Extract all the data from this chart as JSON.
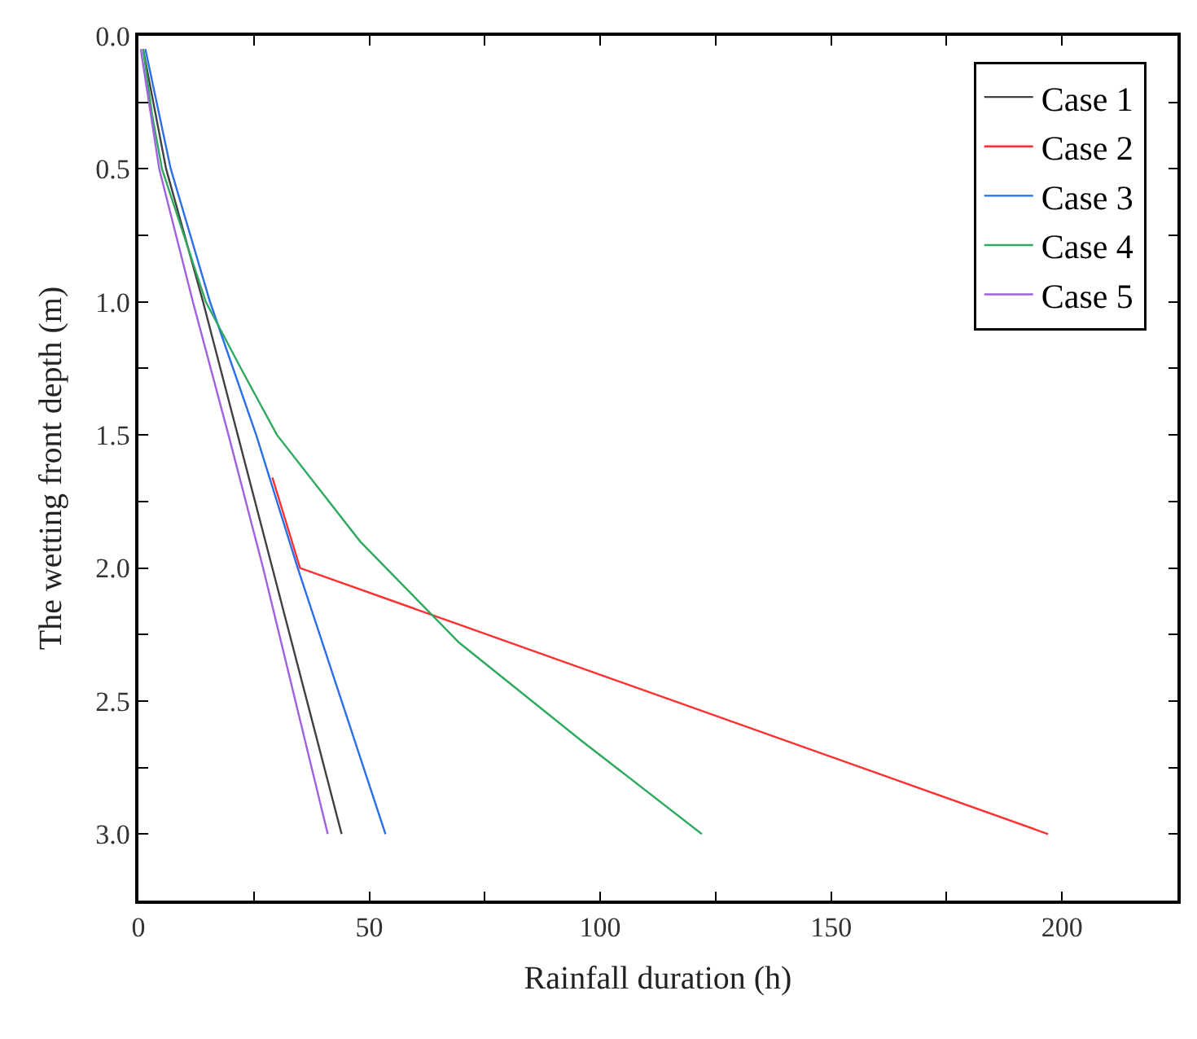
{
  "chart_data": {
    "type": "line",
    "xlabel": "Rainfall duration (h)",
    "ylabel": "The wetting front depth (m)",
    "xlim": [
      0,
      225
    ],
    "ylim": [
      3.25,
      0
    ],
    "xticks": [
      0,
      {
        "value": 25,
        "label": null
      },
      50,
      {
        "value": 75,
        "label": null
      },
      100,
      {
        "value": 125,
        "label": null
      },
      150,
      {
        "value": 175,
        "label": null
      },
      200
    ],
    "yticks": [
      "0.0",
      {
        "value": 0.25,
        "label": null
      },
      0.5,
      {
        "value": 0.75,
        "label": null
      },
      {
        "value": 1,
        "label": "1.0"
      },
      {
        "value": 1.25,
        "label": null
      },
      1.5,
      {
        "value": 1.75,
        "label": null
      },
      {
        "value": 2,
        "label": "2.0"
      },
      {
        "value": 2.25,
        "label": null
      },
      2.5,
      {
        "value": 2.75,
        "label": null
      },
      {
        "value": 3,
        "label": "3.0"
      }
    ],
    "grid": false,
    "legend": "top right",
    "marker": "none",
    "line_style": "solid",
    "series": [
      {
        "name": "Case 1",
        "color": "#404040",
        "x": [
          1,
          6,
          14,
          21.5,
          29,
          36.5,
          44
        ],
        "values": [
          0.05,
          0.5,
          1.0,
          1.5,
          2.0,
          2.5,
          3.0
        ]
      },
      {
        "name": "Case 2",
        "color": "#ff3030",
        "x": [
          29,
          35,
          116,
          197
        ],
        "values": [
          1.66,
          2.0,
          2.5,
          3.0
        ]
      },
      {
        "name": "Case 3",
        "color": "#2a6ee8",
        "x": [
          1.5,
          7,
          15.5,
          25.5,
          34.5,
          44,
          53.5
        ],
        "values": [
          0.05,
          0.5,
          1.0,
          1.5,
          2.0,
          2.5,
          3.0
        ]
      },
      {
        "name": "Case 4",
        "color": "#2eaa60",
        "x": [
          1,
          3,
          5.1,
          14.6,
          22.2,
          30,
          48,
          69.4,
          96,
          122
        ],
        "values": [
          0.05,
          0.3,
          0.5,
          1.0,
          1.25,
          1.5,
          1.9,
          2.28,
          2.65,
          3.0
        ]
      },
      {
        "name": "Case 5",
        "color": "#a060e0",
        "x": [
          0.5,
          4.5,
          11.8,
          19.5,
          27,
          34,
          41
        ],
        "values": [
          0.05,
          0.5,
          1.0,
          1.5,
          2.0,
          2.5,
          3.0
        ]
      }
    ]
  }
}
